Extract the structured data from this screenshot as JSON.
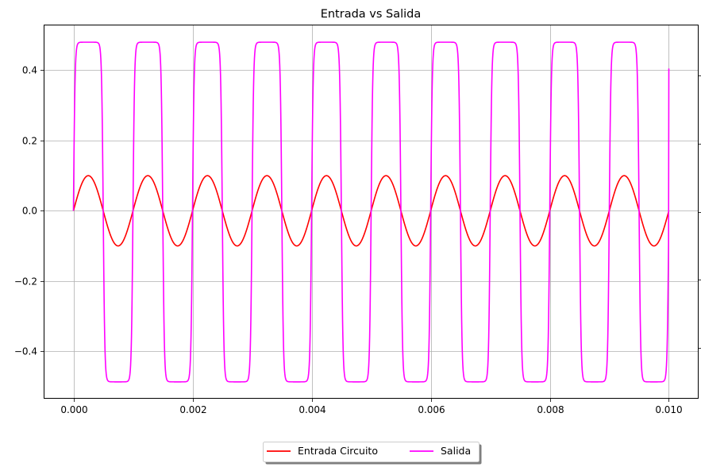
{
  "chart_data": {
    "type": "line",
    "title": "Entrada vs Salida",
    "xlabel": "",
    "ylabel": "",
    "xlim": [
      -0.0005,
      0.0105
    ],
    "ylim": [
      -0.535,
      0.53
    ],
    "xticks": [
      0.0,
      0.002,
      0.004,
      0.006,
      0.008,
      0.01
    ],
    "xtick_labels": [
      "0.000",
      "0.002",
      "0.004",
      "0.006",
      "0.008",
      "0.010"
    ],
    "yticks": [
      -0.4,
      -0.2,
      0.0,
      0.2,
      0.4
    ],
    "ytick_labels": [
      "−0.4",
      "−0.2",
      "0.0",
      "0.2",
      "0.4"
    ],
    "grid": true,
    "legend_position": "bottom-center, below plot",
    "series": [
      {
        "name": "Entrada Circuito",
        "color": "#ff0000",
        "function": "sine",
        "amplitude": 0.1,
        "frequency_hz": 1000,
        "x_start": 0.0,
        "x_end": 0.01
      },
      {
        "name": "Salida",
        "color": "#ff00ff",
        "function": "clipped_amplified_sine",
        "gain": 6,
        "positive_limit": 0.48,
        "negative_limit": -0.487,
        "frequency_hz": 1000,
        "x_start": 0.0,
        "x_end": 0.01,
        "x_end_value": 0.405
      }
    ]
  }
}
